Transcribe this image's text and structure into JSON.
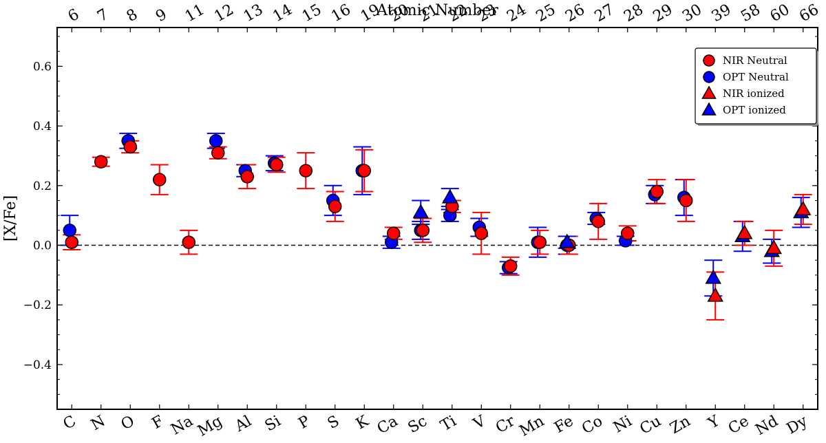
{
  "chart_data": {
    "type": "scatter",
    "ylabel": "[X/Fe]",
    "x2label": "Atomic Number",
    "ylim": [
      -0.55,
      0.73
    ],
    "yticks": [
      -0.4,
      -0.2,
      0.0,
      0.2,
      0.4,
      0.6
    ],
    "ytick_labels": [
      "−0.4",
      "−0.2",
      "0.0",
      "0.2",
      "0.4",
      "0.6"
    ],
    "reference_line": 0.0,
    "grid": false,
    "legend_position": "top-right",
    "colors": {
      "nir": "#ff0000",
      "opt": "#0000ff",
      "edge": "#000000"
    },
    "categories": [
      "C",
      "N",
      "O",
      "F",
      "Na",
      "Mg",
      "Al",
      "Si",
      "P",
      "S",
      "K",
      "Ca",
      "Sc",
      "Ti",
      "V",
      "Cr",
      "Mn",
      "Fe",
      "Co",
      "Ni",
      "Cu",
      "Zn",
      "Y",
      "Ce",
      "Nd",
      "Dy"
    ],
    "atomic_numbers": [
      "6",
      "7",
      "8",
      "9",
      "11",
      "12",
      "13",
      "14",
      "15",
      "16",
      "19",
      "20",
      "21",
      "22",
      "23",
      "24",
      "25",
      "26",
      "27",
      "28",
      "29",
      "30",
      "39",
      "58",
      "60",
      "66"
    ],
    "series": [
      {
        "name": "OPT Neutral",
        "marker": "circle",
        "color": "#0000ff",
        "points": [
          {
            "cat": "C",
            "y": 0.05,
            "err": 0.05
          },
          {
            "cat": "O",
            "y": 0.35,
            "err": 0.025
          },
          {
            "cat": "Mg",
            "y": 0.35,
            "err": 0.025
          },
          {
            "cat": "Al",
            "y": 0.25,
            "err": 0.02
          },
          {
            "cat": "Si",
            "y": 0.275,
            "err": 0.025
          },
          {
            "cat": "S",
            "y": 0.15,
            "err": 0.05
          },
          {
            "cat": "K",
            "y": 0.25,
            "err": 0.08
          },
          {
            "cat": "Ca",
            "y": 0.01,
            "err": 0.02
          },
          {
            "cat": "Sc",
            "y": 0.05,
            "err": 0.03
          },
          {
            "cat": "Ti",
            "y": 0.1,
            "err": 0.02
          },
          {
            "cat": "V",
            "y": 0.06,
            "err": 0.03
          },
          {
            "cat": "Cr",
            "y": -0.075,
            "err": 0.02
          },
          {
            "cat": "Mn",
            "y": 0.01,
            "err": 0.05
          },
          {
            "cat": "Fe",
            "y": 0.0,
            "err": 0.03
          },
          {
            "cat": "Co",
            "y": 0.09,
            "err": 0.02
          },
          {
            "cat": "Ni",
            "y": 0.015,
            "err": 0.015
          },
          {
            "cat": "Cu",
            "y": 0.17,
            "err": 0.03
          },
          {
            "cat": "Zn",
            "y": 0.16,
            "err": 0.06
          }
        ]
      },
      {
        "name": "NIR Neutral",
        "marker": "circle",
        "color": "#ff0000",
        "points": [
          {
            "cat": "C",
            "y": 0.01,
            "err": 0.025
          },
          {
            "cat": "N",
            "y": 0.28,
            "err": 0.015
          },
          {
            "cat": "O",
            "y": 0.33,
            "err": 0.02
          },
          {
            "cat": "F",
            "y": 0.22,
            "err": 0.05
          },
          {
            "cat": "Na",
            "y": 0.01,
            "err": 0.04
          },
          {
            "cat": "Mg",
            "y": 0.31,
            "err": 0.02
          },
          {
            "cat": "Al",
            "y": 0.23,
            "err": 0.04
          },
          {
            "cat": "Si",
            "y": 0.27,
            "err": 0.025
          },
          {
            "cat": "P",
            "y": 0.25,
            "err": 0.06
          },
          {
            "cat": "S",
            "y": 0.13,
            "err": 0.05
          },
          {
            "cat": "K",
            "y": 0.25,
            "err": 0.07
          },
          {
            "cat": "Ca",
            "y": 0.04,
            "err": 0.02
          },
          {
            "cat": "Sc",
            "y": 0.05,
            "err": 0.04
          },
          {
            "cat": "Ti",
            "y": 0.13,
            "err": 0.02
          },
          {
            "cat": "V",
            "y": 0.04,
            "err": 0.07
          },
          {
            "cat": "Cr",
            "y": -0.07,
            "err": 0.03
          },
          {
            "cat": "Mn",
            "y": 0.01,
            "err": 0.04
          },
          {
            "cat": "Fe",
            "y": 0.0,
            "err": 0.03
          },
          {
            "cat": "Co",
            "y": 0.08,
            "err": 0.06
          },
          {
            "cat": "Ni",
            "y": 0.04,
            "err": 0.025
          },
          {
            "cat": "Cu",
            "y": 0.18,
            "err": 0.04
          },
          {
            "cat": "Zn",
            "y": 0.15,
            "err": 0.07
          }
        ]
      },
      {
        "name": "OPT ionized",
        "marker": "triangle",
        "color": "#0000ff",
        "points": [
          {
            "cat": "Sc",
            "y": 0.11,
            "err": 0.04
          },
          {
            "cat": "Ti",
            "y": 0.16,
            "err": 0.03
          },
          {
            "cat": "Fe",
            "y": 0.01,
            "err": 0.02
          },
          {
            "cat": "Y",
            "y": -0.11,
            "err": 0.06
          },
          {
            "cat": "Ce",
            "y": 0.03,
            "err": 0.05
          },
          {
            "cat": "Nd",
            "y": -0.02,
            "err": 0.04
          },
          {
            "cat": "Dy",
            "y": 0.11,
            "err": 0.05
          }
        ]
      },
      {
        "name": "NIR ionized",
        "marker": "triangle",
        "color": "#ff0000",
        "points": [
          {
            "cat": "Y",
            "y": -0.17,
            "err": 0.08
          },
          {
            "cat": "Ce",
            "y": 0.04,
            "err": 0.04
          },
          {
            "cat": "Nd",
            "y": -0.01,
            "err": 0.06
          },
          {
            "cat": "Dy",
            "y": 0.12,
            "err": 0.05
          }
        ]
      }
    ],
    "legend": [
      {
        "label": "NIR Neutral",
        "marker": "circle",
        "color": "#ff0000"
      },
      {
        "label": "OPT Neutral",
        "marker": "circle",
        "color": "#0000ff"
      },
      {
        "label": "NIR ionized",
        "marker": "triangle",
        "color": "#ff0000"
      },
      {
        "label": "OPT ionized",
        "marker": "triangle",
        "color": "#0000ff"
      }
    ]
  }
}
